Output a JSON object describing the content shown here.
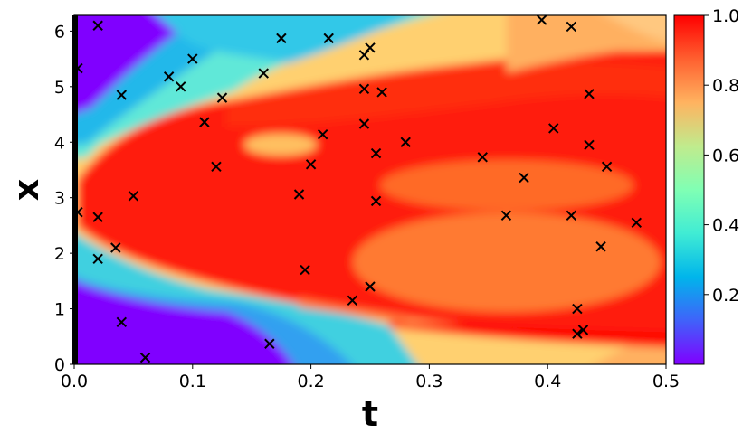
{
  "chart_data": {
    "type": "heatmap",
    "title": "",
    "xlabel": "t",
    "ylabel": "x",
    "xlim": [
      0,
      0.5
    ],
    "ylim": [
      0,
      6.283
    ],
    "x_ticks": [
      0.0,
      0.1,
      0.2,
      0.3,
      0.4,
      0.5
    ],
    "x_tick_labels": [
      "0.0",
      "0.1",
      "0.2",
      "0.3",
      "0.4",
      "0.5"
    ],
    "y_ticks": [
      0,
      1,
      2,
      3,
      4,
      5,
      6
    ],
    "y_tick_labels": [
      "0",
      "1",
      "2",
      "3",
      "4",
      "5",
      "6"
    ],
    "colormap": "rainbow",
    "colorbar": {
      "range": [
        0.0,
        1.0
      ],
      "ticks": [
        0.2,
        0.4,
        0.6,
        0.8,
        1.0
      ],
      "tick_labels": [
        "0.2",
        "0.4",
        "0.6",
        "0.8",
        "1.0"
      ]
    },
    "grid": false,
    "field_description": "u(t,x) high (~1) across a central band spreading with t; low (~0) near x=0 and x=2π at small t",
    "sample_points_marker": "x",
    "sample_points": [
      [
        0.003,
        5.33
      ],
      [
        0.003,
        2.74
      ],
      [
        0.02,
        6.1
      ],
      [
        0.02,
        2.65
      ],
      [
        0.02,
        1.9
      ],
      [
        0.035,
        2.1
      ],
      [
        0.04,
        4.85
      ],
      [
        0.04,
        0.76
      ],
      [
        0.05,
        3.03
      ],
      [
        0.06,
        0.12
      ],
      [
        0.08,
        5.18
      ],
      [
        0.09,
        5.0
      ],
      [
        0.1,
        5.5
      ],
      [
        0.11,
        4.36
      ],
      [
        0.12,
        3.56
      ],
      [
        0.125,
        4.8
      ],
      [
        0.16,
        5.24
      ],
      [
        0.165,
        0.37
      ],
      [
        0.175,
        5.87
      ],
      [
        0.19,
        3.06
      ],
      [
        0.195,
        1.7
      ],
      [
        0.2,
        3.6
      ],
      [
        0.21,
        4.14
      ],
      [
        0.215,
        5.87
      ],
      [
        0.235,
        1.15
      ],
      [
        0.245,
        4.96
      ],
      [
        0.245,
        4.33
      ],
      [
        0.245,
        5.57
      ],
      [
        0.25,
        5.7
      ],
      [
        0.25,
        1.4
      ],
      [
        0.255,
        2.94
      ],
      [
        0.255,
        3.8
      ],
      [
        0.26,
        4.9
      ],
      [
        0.28,
        4.0
      ],
      [
        0.345,
        3.73
      ],
      [
        0.365,
        2.68
      ],
      [
        0.38,
        3.36
      ],
      [
        0.395,
        6.2
      ],
      [
        0.405,
        4.25
      ],
      [
        0.42,
        6.08
      ],
      [
        0.42,
        2.68
      ],
      [
        0.425,
        1.0
      ],
      [
        0.425,
        0.55
      ],
      [
        0.43,
        0.62
      ],
      [
        0.435,
        4.87
      ],
      [
        0.435,
        3.95
      ],
      [
        0.445,
        2.12
      ],
      [
        0.45,
        3.56
      ],
      [
        0.475,
        2.55
      ]
    ]
  }
}
